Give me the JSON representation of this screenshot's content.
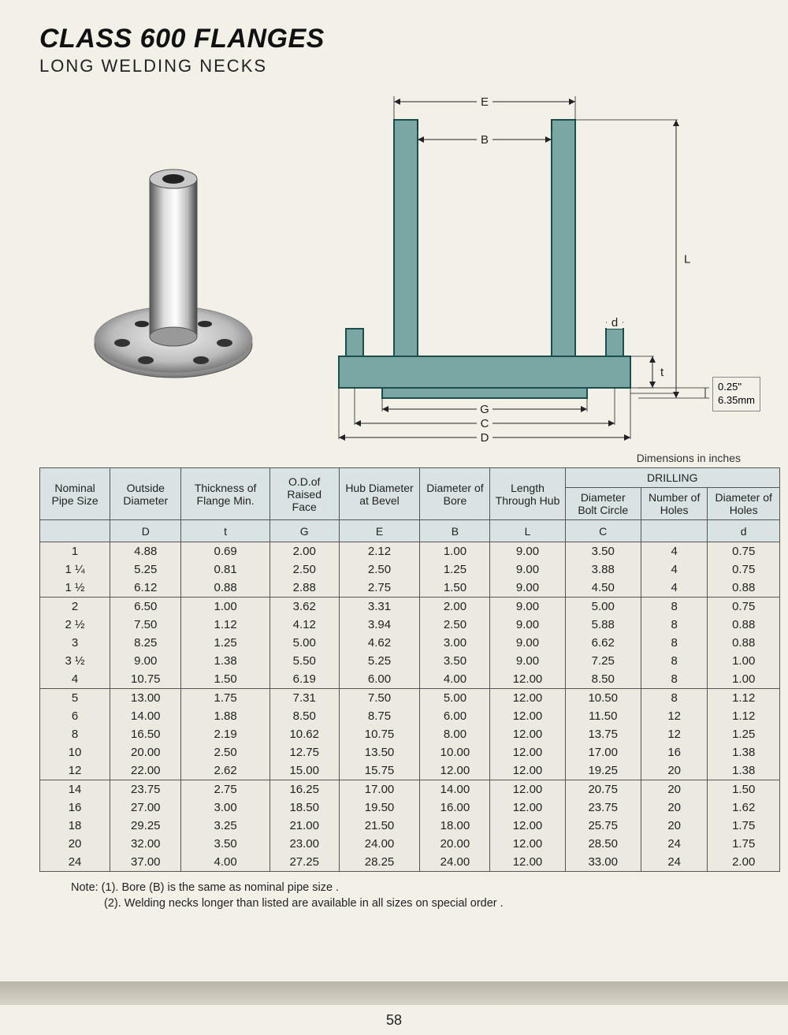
{
  "header": {
    "title": "CLASS 600 FLANGES",
    "subtitle": "LONG WELDING NECKS"
  },
  "diagram": {
    "fill_color": "#7aa7a3",
    "stroke_color": "#1a4f4b",
    "label_E": "E",
    "label_B": "B",
    "label_G": "G",
    "label_C": "C",
    "label_D": "D",
    "label_L": "L",
    "label_t": "t",
    "label_d": "d",
    "callout_in": "0.25\"",
    "callout_mm": "6.35mm"
  },
  "table": {
    "units_note": "Dimensions in inches",
    "drilling_header": "DRILLING",
    "columns": [
      {
        "label": "Nominal Pipe Size",
        "sym": ""
      },
      {
        "label": "Outside Diameter",
        "sym": "D"
      },
      {
        "label": "Thickness of Flange Min.",
        "sym": "t"
      },
      {
        "label": "O.D.of Raised Face",
        "sym": "G"
      },
      {
        "label": "Hub Diameter at Bevel",
        "sym": "E"
      },
      {
        "label": "Diameter of Bore",
        "sym": "B"
      },
      {
        "label": "Length Through Hub",
        "sym": "L"
      },
      {
        "label": "Diameter Bolt Circle",
        "sym": "C"
      },
      {
        "label": "Number of Holes",
        "sym": ""
      },
      {
        "label": "Diameter of Holes",
        "sym": "d"
      }
    ],
    "groups": [
      [
        [
          "1",
          "4.88",
          "0.69",
          "2.00",
          "2.12",
          "1.00",
          "9.00",
          "3.50",
          "4",
          "0.75"
        ],
        [
          "1 ¼",
          "5.25",
          "0.81",
          "2.50",
          "2.50",
          "1.25",
          "9.00",
          "3.88",
          "4",
          "0.75"
        ],
        [
          "1 ½",
          "6.12",
          "0.88",
          "2.88",
          "2.75",
          "1.50",
          "9.00",
          "4.50",
          "4",
          "0.88"
        ]
      ],
      [
        [
          "2",
          "6.50",
          "1.00",
          "3.62",
          "3.31",
          "2.00",
          "9.00",
          "5.00",
          "8",
          "0.75"
        ],
        [
          "2 ½",
          "7.50",
          "1.12",
          "4.12",
          "3.94",
          "2.50",
          "9.00",
          "5.88",
          "8",
          "0.88"
        ],
        [
          "3",
          "8.25",
          "1.25",
          "5.00",
          "4.62",
          "3.00",
          "9.00",
          "6.62",
          "8",
          "0.88"
        ],
        [
          "3 ½",
          "9.00",
          "1.38",
          "5.50",
          "5.25",
          "3.50",
          "9.00",
          "7.25",
          "8",
          "1.00"
        ],
        [
          "4",
          "10.75",
          "1.50",
          "6.19",
          "6.00",
          "4.00",
          "12.00",
          "8.50",
          "8",
          "1.00"
        ]
      ],
      [
        [
          "5",
          "13.00",
          "1.75",
          "7.31",
          "7.50",
          "5.00",
          "12.00",
          "10.50",
          "8",
          "1.12"
        ],
        [
          "6",
          "14.00",
          "1.88",
          "8.50",
          "8.75",
          "6.00",
          "12.00",
          "11.50",
          "12",
          "1.12"
        ],
        [
          "8",
          "16.50",
          "2.19",
          "10.62",
          "10.75",
          "8.00",
          "12.00",
          "13.75",
          "12",
          "1.25"
        ],
        [
          "10",
          "20.00",
          "2.50",
          "12.75",
          "13.50",
          "10.00",
          "12.00",
          "17.00",
          "16",
          "1.38"
        ],
        [
          "12",
          "22.00",
          "2.62",
          "15.00",
          "15.75",
          "12.00",
          "12.00",
          "19.25",
          "20",
          "1.38"
        ]
      ],
      [
        [
          "14",
          "23.75",
          "2.75",
          "16.25",
          "17.00",
          "14.00",
          "12.00",
          "20.75",
          "20",
          "1.50"
        ],
        [
          "16",
          "27.00",
          "3.00",
          "18.50",
          "19.50",
          "16.00",
          "12.00",
          "23.75",
          "20",
          "1.62"
        ],
        [
          "18",
          "29.25",
          "3.25",
          "21.00",
          "21.50",
          "18.00",
          "12.00",
          "25.75",
          "20",
          "1.75"
        ],
        [
          "20",
          "32.00",
          "3.50",
          "23.00",
          "24.00",
          "20.00",
          "12.00",
          "28.50",
          "24",
          "1.75"
        ],
        [
          "24",
          "37.00",
          "4.00",
          "27.25",
          "28.25",
          "24.00",
          "12.00",
          "33.00",
          "24",
          "2.00"
        ]
      ]
    ]
  },
  "notes": {
    "line1": "Note: (1). Bore (B) is the same as nominal pipe size .",
    "line2": "(2). Welding necks longer than listed are available in all sizes on special order ."
  },
  "page_number": "58"
}
